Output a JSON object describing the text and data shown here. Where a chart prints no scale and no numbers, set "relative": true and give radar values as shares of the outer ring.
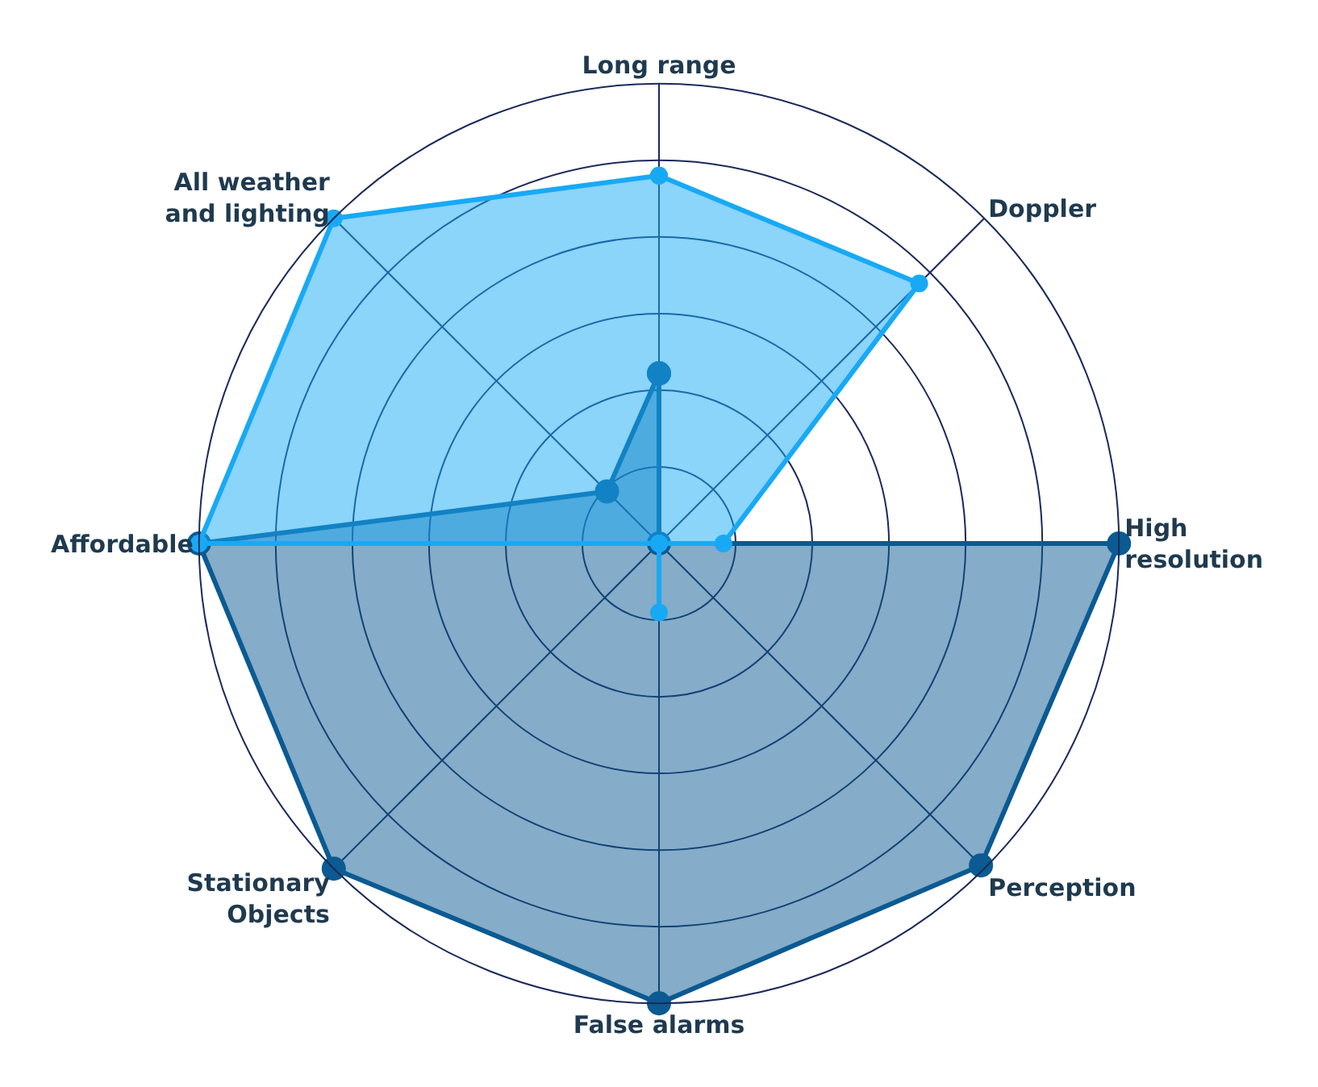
{
  "chart_data": {
    "type": "radar",
    "relative": true,
    "grid": true,
    "marker": "circle",
    "categories": [
      "Long range",
      "Doppler",
      "High resolution",
      "Perception",
      "False alarms",
      "Stationary Objects",
      "Affordable",
      "All weather and lighting"
    ],
    "series": [
      {
        "color": "#0b5a92",
        "values": [
          0.37,
          0,
          1,
          0.99,
          1,
          1,
          1,
          0.16
        ]
      },
      {
        "color": "#18a9f5",
        "values": [
          0.8,
          0.8,
          0.14,
          0,
          0.15,
          0,
          1,
          1
        ]
      }
    ]
  }
}
